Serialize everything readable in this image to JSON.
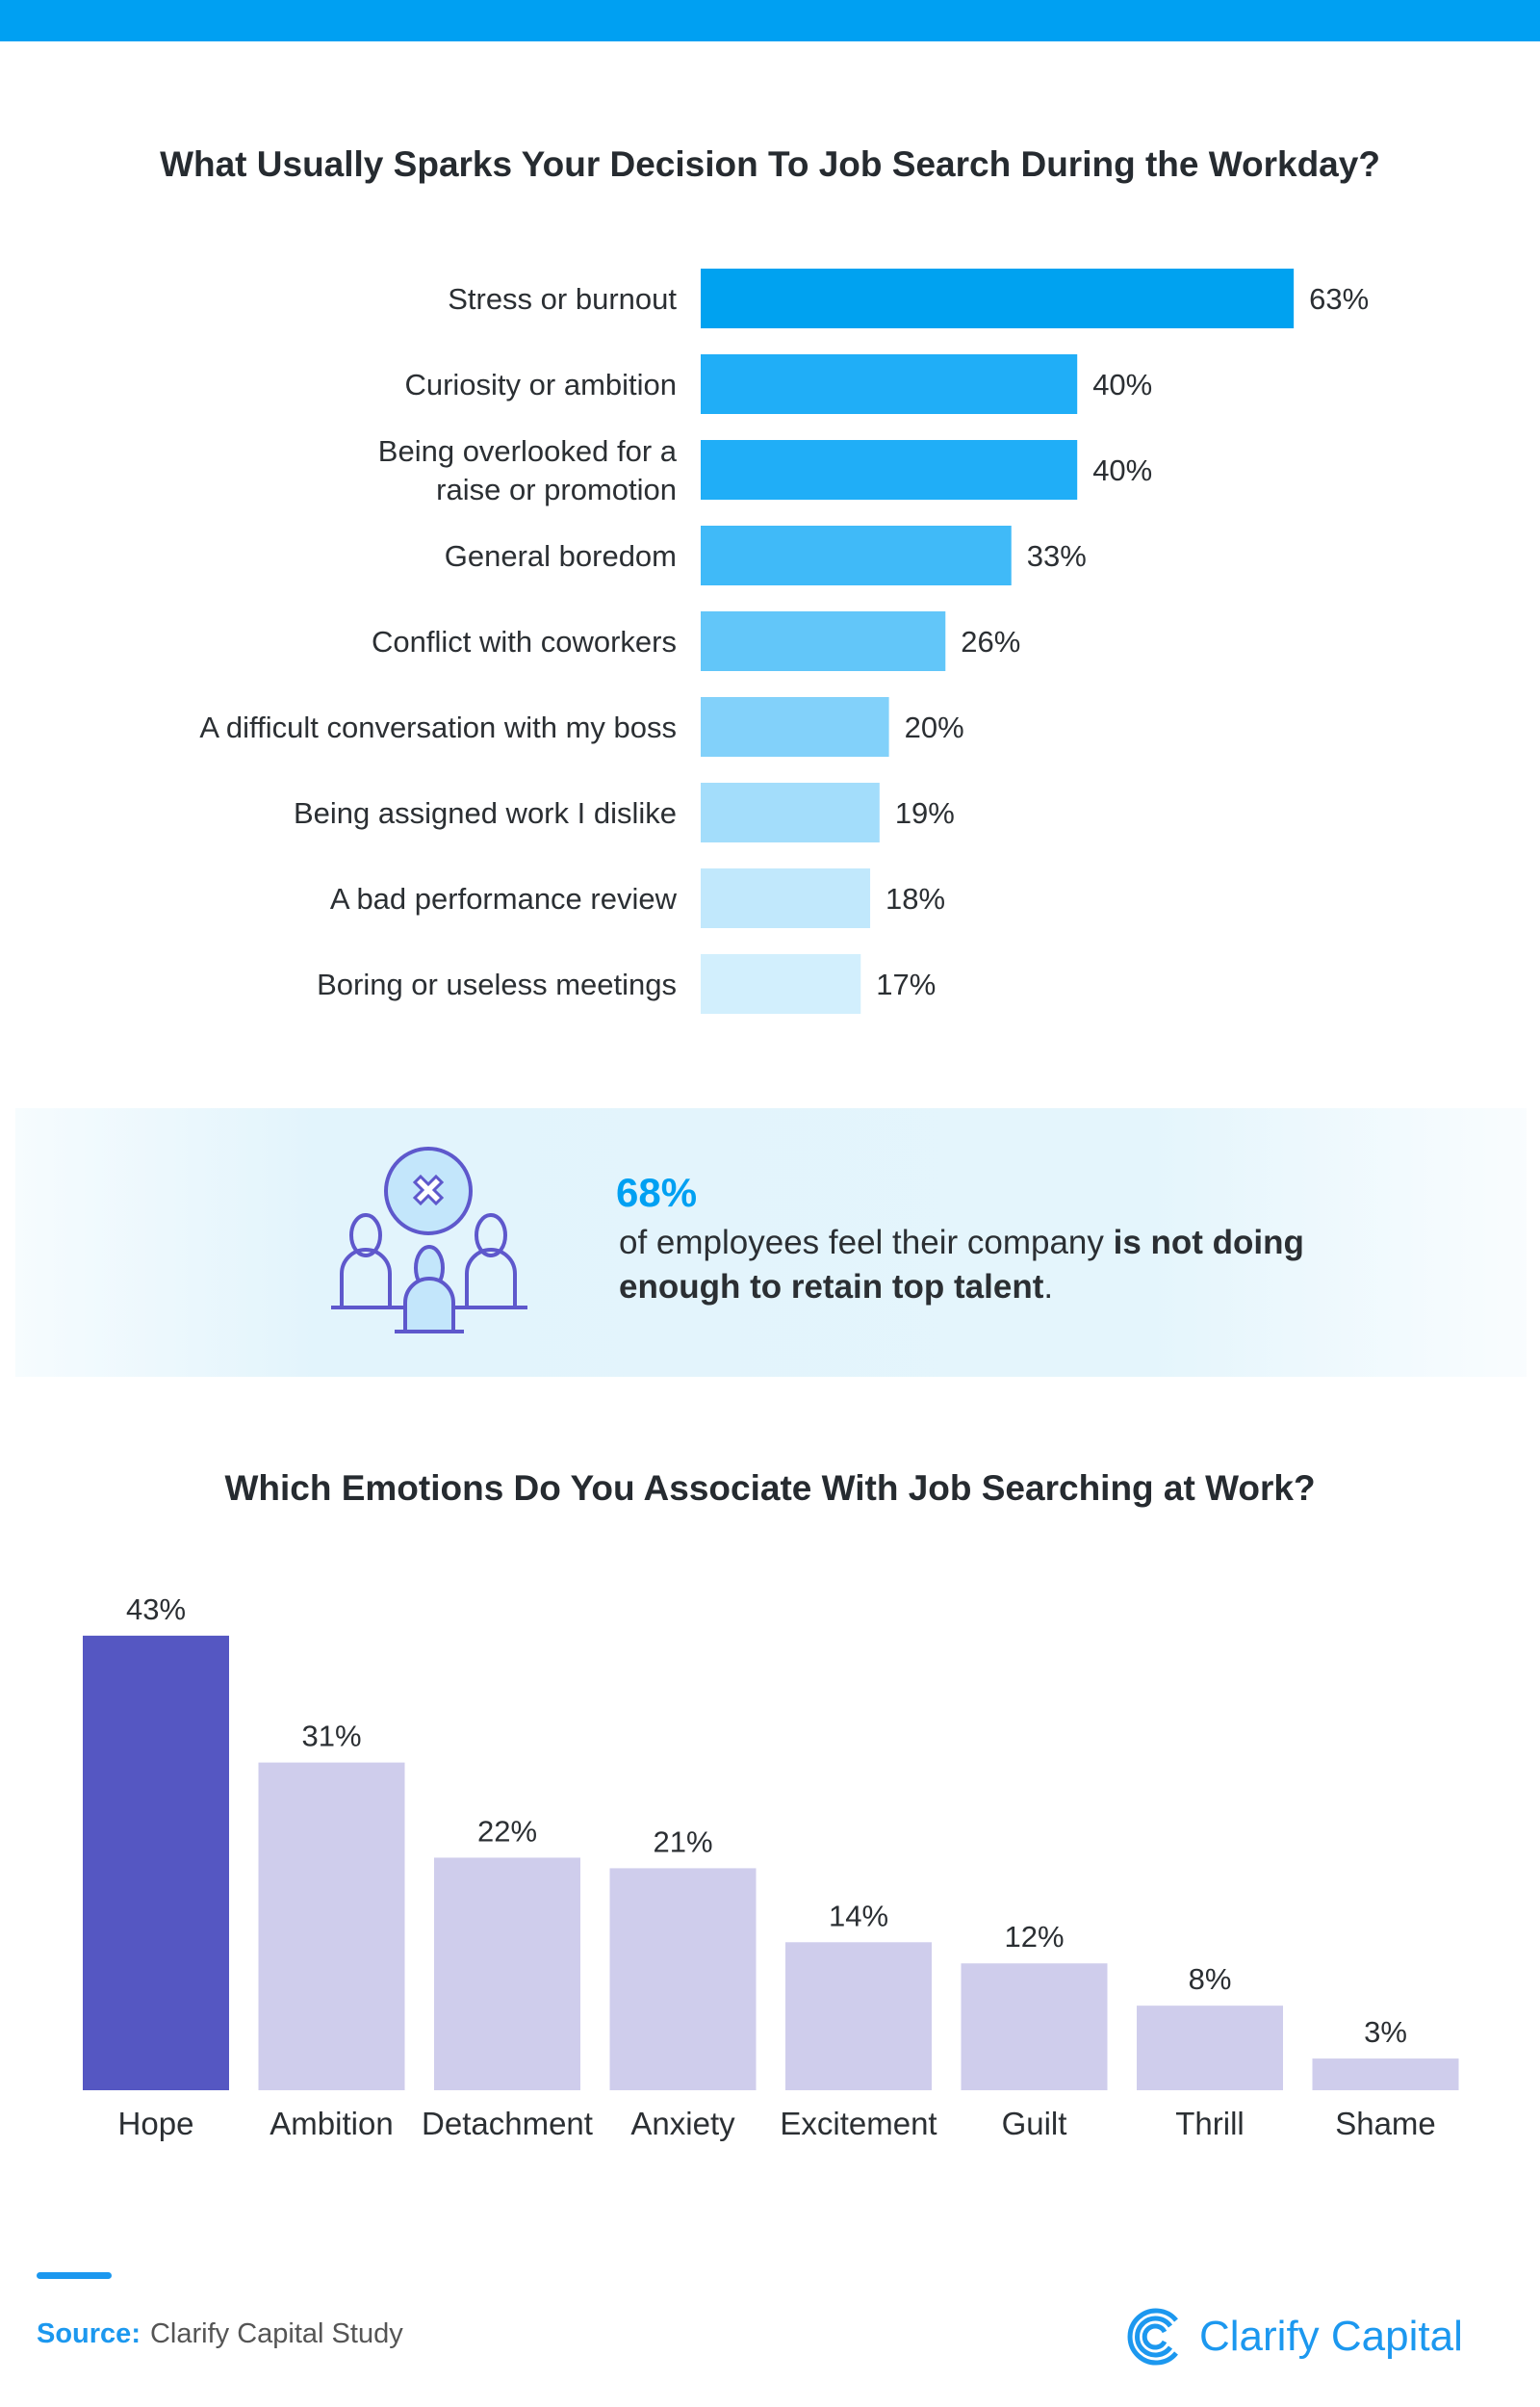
{
  "colors": {
    "brand": "#00a0f2",
    "highlight": "#5557c2",
    "muted": "#cfcdec",
    "text": "#2b2f33"
  },
  "chart_data": [
    {
      "type": "bar",
      "orientation": "horizontal",
      "title": "What Usually Sparks Your Decision To Job Search During the Workday?",
      "categories": [
        "Stress or burnout",
        "Curiosity or ambition",
        "Being overlooked for a raise or promotion",
        "General boredom",
        "Conflict with coworkers",
        "A difficult conversation with my boss",
        "Being assigned work I dislike",
        "A bad performance review",
        "Boring or useless meetings"
      ],
      "category_lines": [
        [
          "Stress or burnout"
        ],
        [
          "Curiosity or ambition"
        ],
        [
          "Being overlooked for a",
          "raise or promotion"
        ],
        [
          "General boredom"
        ],
        [
          "Conflict with coworkers"
        ],
        [
          "A difficult conversation with my boss"
        ],
        [
          "Being assigned work I dislike"
        ],
        [
          "A bad performance review"
        ],
        [
          "Boring or useless meetings"
        ]
      ],
      "values": [
        63,
        40,
        40,
        33,
        26,
        20,
        19,
        18,
        17
      ],
      "data_labels": [
        "63%",
        "40%",
        "40%",
        "33%",
        "26%",
        "20%",
        "19%",
        "18%",
        "17%"
      ],
      "bar_colors": [
        "#00a2f0",
        "#20aef7",
        "#20aef7",
        "#40baf8",
        "#62c6f9",
        "#82d1fa",
        "#a3ddfb",
        "#c1e8fc",
        "#d2effd"
      ],
      "unit": "%"
    },
    {
      "type": "bar",
      "orientation": "vertical",
      "title": "Which Emotions Do You Associate With Job Searching at Work?",
      "categories": [
        "Hope",
        "Ambition",
        "Detachment",
        "Anxiety",
        "Excitement",
        "Guilt",
        "Thrill",
        "Shame"
      ],
      "values": [
        43,
        31,
        22,
        21,
        14,
        12,
        8,
        3
      ],
      "data_labels": [
        "43%",
        "31%",
        "22%",
        "21%",
        "14%",
        "12%",
        "8%",
        "3%"
      ],
      "bar_colors": [
        "#5557c2",
        "#cfcdec",
        "#cfcdec",
        "#cfcdec",
        "#cfcdec",
        "#cfcdec",
        "#cfcdec",
        "#cfcdec"
      ],
      "unit": "%"
    }
  ],
  "callout": {
    "stat": "68%",
    "text_plain": "of employees feel their company ",
    "text_bold": "is not doing enough to retain top talent",
    "text_end": ".",
    "icon": "people-with-x-icon"
  },
  "footer": {
    "source_label": "Source:",
    "source_value": "Clarify Capital Study",
    "logo_text": "Clarify Capital"
  }
}
